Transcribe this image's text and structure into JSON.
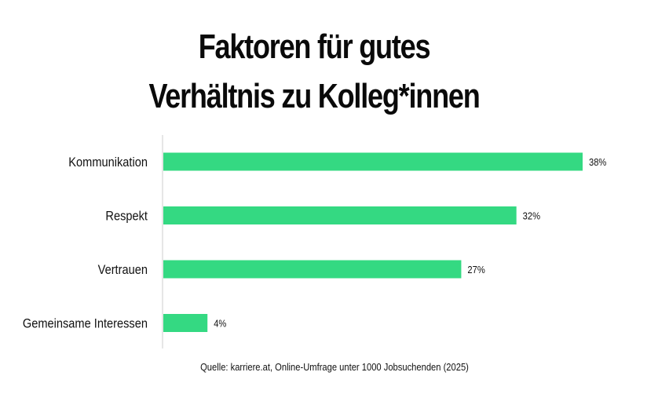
{
  "title": {
    "line1": "Faktoren für gutes",
    "line2": "Verhältnis zu Kolleg*innen"
  },
  "source": "Quelle: karriere.at, Online-Umfrage unter 1000 Jobsuchenden (2025)",
  "colors": {
    "bar": "#34d982",
    "axis": "#cccccc",
    "text": "#111111"
  },
  "chart_data": {
    "type": "bar",
    "orientation": "horizontal",
    "categories": [
      "Kommunikation",
      "Respekt",
      "Vertrauen",
      "Gemeinsame Interessen"
    ],
    "values": [
      38,
      32,
      27,
      4
    ],
    "value_labels": [
      "38%",
      "32%",
      "27%",
      "4%"
    ],
    "unit": "%",
    "xlim": [
      0,
      38
    ],
    "grid": false,
    "legend": "none"
  }
}
